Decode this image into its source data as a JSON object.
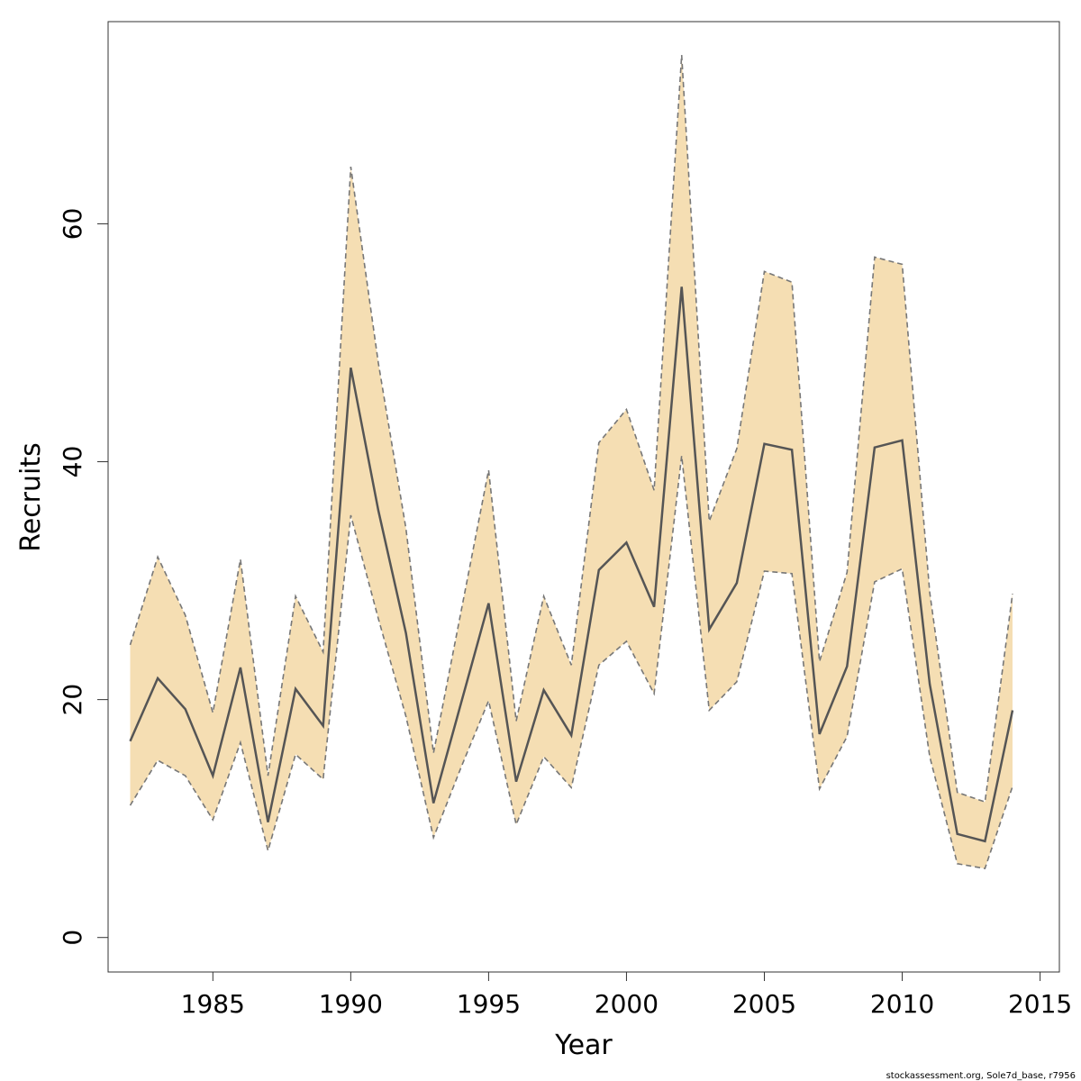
{
  "chart_data": {
    "type": "area",
    "xlabel": "Year",
    "ylabel": "Recruits",
    "xlim": [
      1981.2,
      2015.7
    ],
    "ylim": [
      -2.9,
      77
    ],
    "x_ticks": [
      1985,
      1990,
      1995,
      2000,
      2005,
      2010,
      2015
    ],
    "y_ticks": [
      0,
      20,
      40,
      60
    ],
    "x": [
      1982,
      1983,
      1984,
      1985,
      1986,
      1987,
      1988,
      1989,
      1990,
      1991,
      1992,
      1993,
      1994,
      1995,
      1996,
      1997,
      1998,
      1999,
      2000,
      2001,
      2002,
      2003,
      2004,
      2005,
      2006,
      2007,
      2008,
      2009,
      2010,
      2011,
      2012,
      2013,
      2014
    ],
    "series": [
      {
        "role": "estimate",
        "values": [
          16.5,
          21.8,
          19.2,
          13.6,
          22.7,
          9.7,
          20.9,
          17.8,
          47.9,
          35.9,
          25.6,
          11.3,
          19.7,
          28.1,
          13.1,
          20.8,
          17.0,
          30.9,
          33.2,
          27.8,
          54.7,
          25.9,
          29.8,
          41.5,
          41.0,
          17.1,
          22.8,
          41.2,
          41.8,
          21.3,
          8.7,
          8.1,
          19.1
        ]
      },
      {
        "role": "upper",
        "values": [
          24.6,
          32.0,
          27.1,
          18.9,
          31.8,
          13.6,
          28.7,
          24.0,
          64.8,
          48.3,
          34.4,
          15.5,
          27.4,
          39.3,
          18.2,
          28.7,
          22.9,
          41.6,
          44.4,
          37.6,
          74.2,
          35.0,
          41.1,
          56.0,
          55.1,
          23.2,
          30.7,
          57.2,
          56.6,
          29.0,
          12.2,
          11.4,
          28.9
        ]
      },
      {
        "role": "lower",
        "values": [
          11.1,
          14.9,
          13.6,
          9.9,
          16.4,
          7.3,
          15.4,
          13.3,
          35.5,
          26.8,
          18.6,
          8.4,
          14.3,
          19.9,
          9.5,
          15.2,
          12.6,
          22.9,
          24.9,
          20.5,
          40.5,
          19.1,
          21.5,
          30.8,
          30.6,
          12.5,
          16.9,
          29.9,
          31.0,
          15.2,
          6.2,
          5.8,
          12.7
        ]
      }
    ],
    "band_color": "#f5deb3",
    "line_color": "#555555",
    "bound_line_color": "#777777",
    "credit": "stockassessment.org, Sole7d_base, r7956"
  }
}
